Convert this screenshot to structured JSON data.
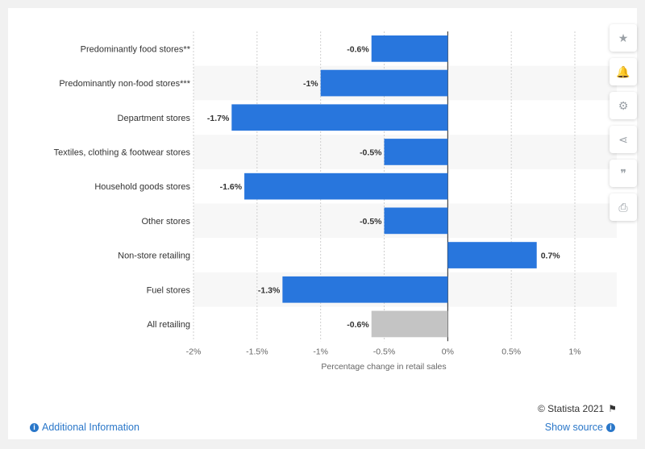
{
  "chart_data": {
    "type": "bar",
    "orientation": "horizontal",
    "categories": [
      "Predominantly food stores**",
      "Predominantly non-food stores***",
      "Department stores",
      "Textiles, clothing & footwear stores",
      "Household goods stores",
      "Other stores",
      "Non-store retailing",
      "Fuel stores",
      "All retailing"
    ],
    "values": [
      -0.6,
      -1,
      -1.7,
      -0.5,
      -1.6,
      -0.5,
      0.7,
      -1.3,
      -0.6
    ],
    "value_labels": [
      "-0.6%",
      "-1%",
      "-1.7%",
      "-0.5%",
      "-1.6%",
      "-0.5%",
      "0.7%",
      "-1.3%",
      "-0.6%"
    ],
    "xlim": [
      -2,
      1
    ],
    "ticks": [
      -2,
      -1.5,
      -1,
      -0.5,
      0,
      0.5,
      1
    ],
    "tick_labels": [
      "-2%",
      "-1.5%",
      "-1%",
      "-0.5%",
      "0%",
      "0.5%",
      "1%"
    ],
    "xlabel": "Percentage change in retail sales",
    "ylabel": "",
    "grid": true,
    "colors": {
      "bar": "#2876dd",
      "highlight": "#c4c4c4",
      "band": "#f7f7f7"
    },
    "highlight_index": 8
  },
  "sidebar": {
    "buttons": [
      {
        "name": "star-icon",
        "glyph": "★"
      },
      {
        "name": "bell-icon",
        "glyph": "🔔"
      },
      {
        "name": "gear-icon",
        "glyph": "⚙"
      },
      {
        "name": "share-icon",
        "glyph": "⋖"
      },
      {
        "name": "quote-icon",
        "glyph": "❞"
      },
      {
        "name": "print-icon",
        "glyph": "⎙"
      }
    ]
  },
  "footer": {
    "copyright": "© Statista 2021",
    "additional_info": "Additional Information",
    "show_source": "Show source"
  }
}
